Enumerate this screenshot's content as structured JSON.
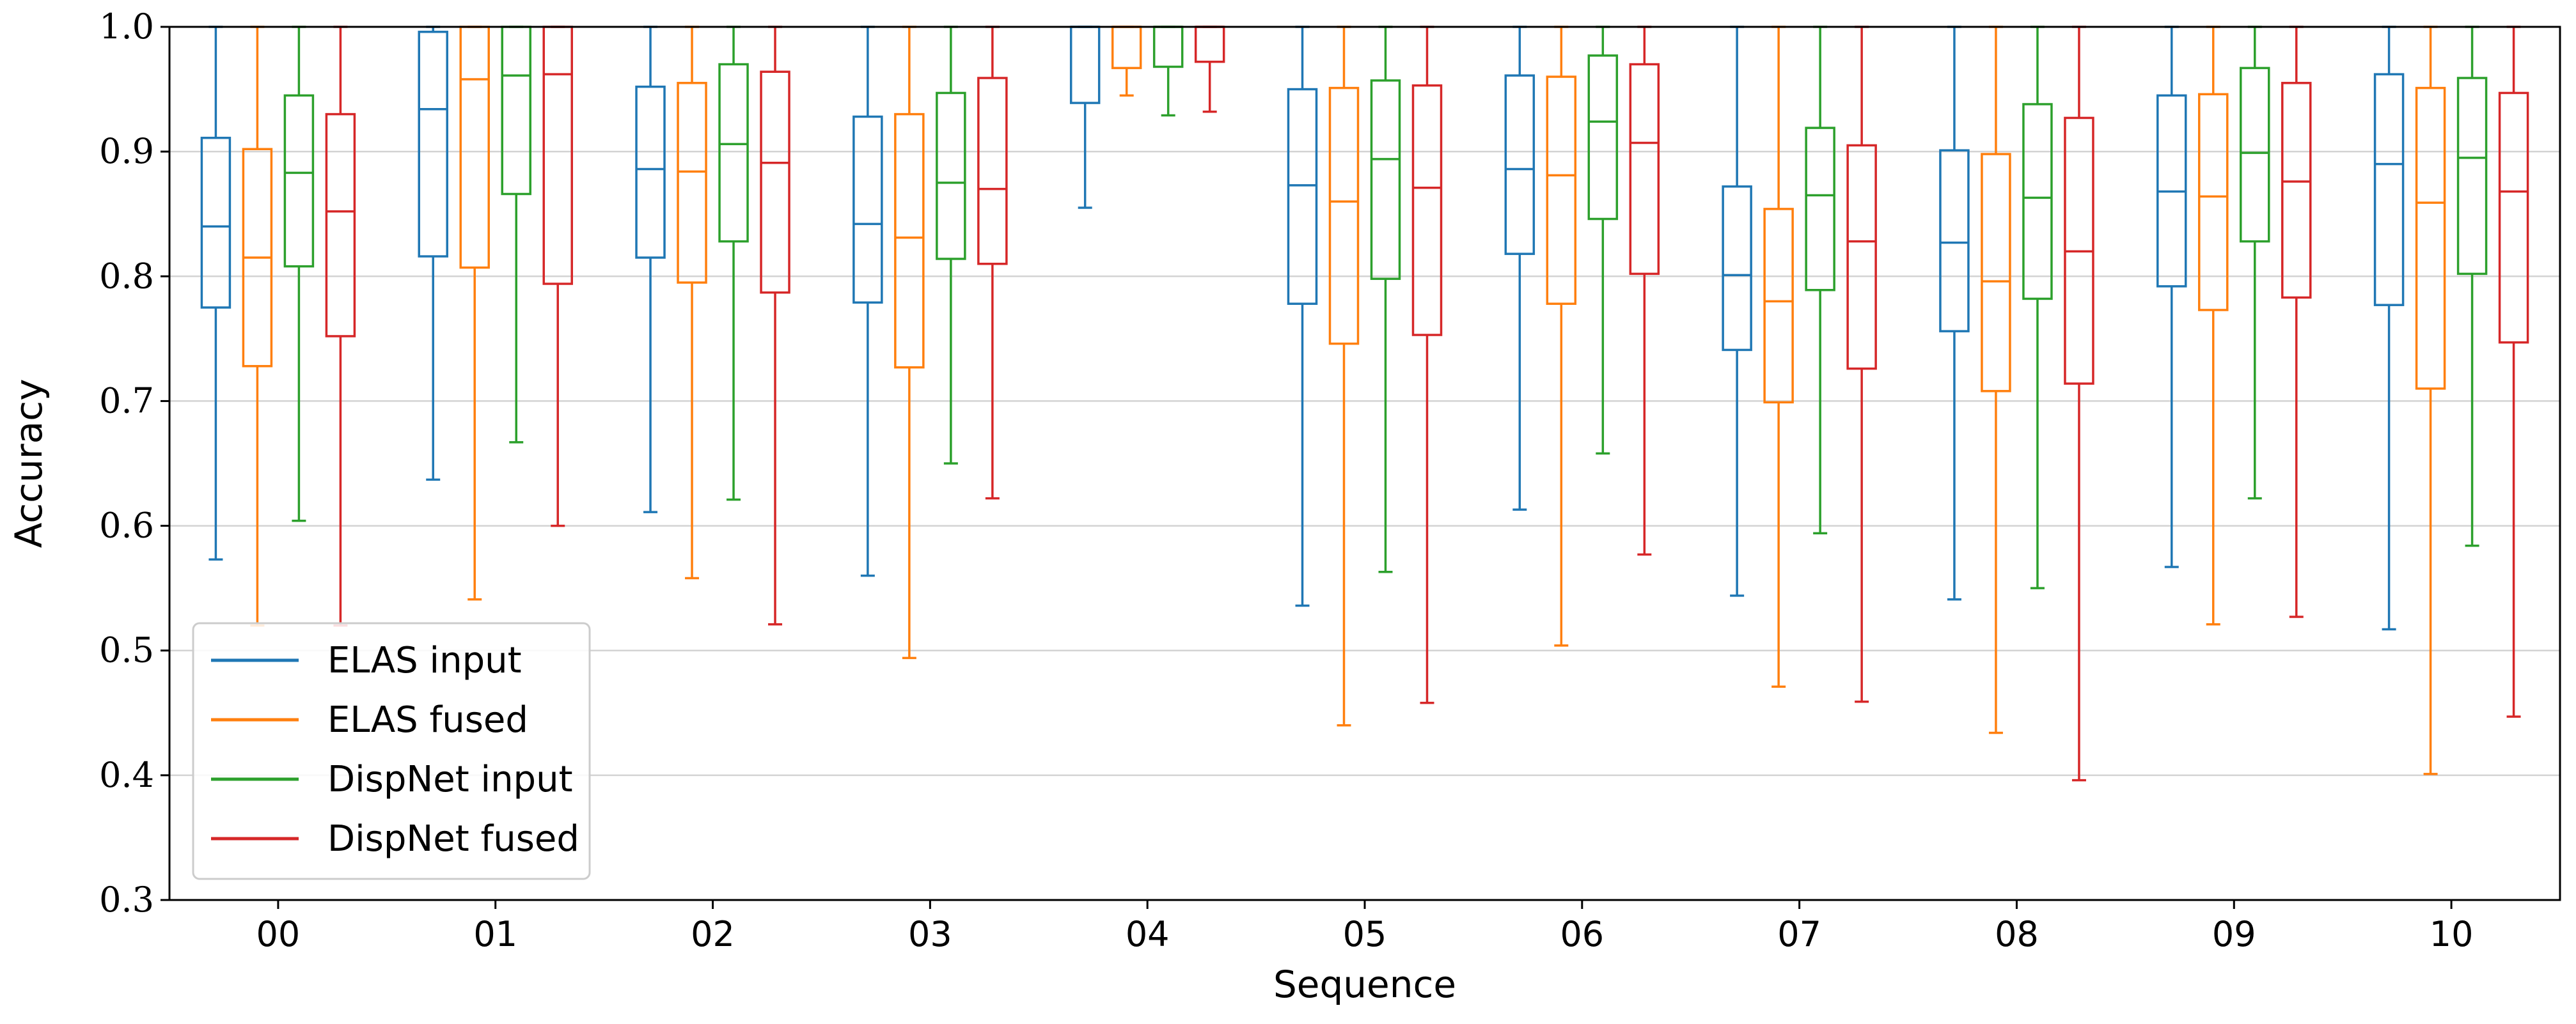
{
  "chart_data": {
    "type": "box",
    "xlabel": "Sequence",
    "ylabel": "Accuracy",
    "ylim": [
      0.3,
      1.0
    ],
    "yticks": [
      "0.3",
      "0.4",
      "0.5",
      "0.6",
      "0.7",
      "0.8",
      "0.9",
      "1.0"
    ],
    "grid": "horizontal",
    "legend_position": "lower-left",
    "categories": [
      "00",
      "01",
      "02",
      "03",
      "04",
      "05",
      "06",
      "07",
      "08",
      "09",
      "10"
    ],
    "series": [
      {
        "name": "ELAS input",
        "color": "#1f77b4",
        "boxes": [
          {
            "low": 0.573,
            "q1": 0.775,
            "median": 0.84,
            "q3": 0.911,
            "high": 1.0
          },
          {
            "low": 0.637,
            "q1": 0.816,
            "median": 0.934,
            "q3": 0.996,
            "high": 1.0
          },
          {
            "low": 0.611,
            "q1": 0.815,
            "median": 0.886,
            "q3": 0.952,
            "high": 1.0
          },
          {
            "low": 0.56,
            "q1": 0.779,
            "median": 0.842,
            "q3": 0.928,
            "high": 1.0
          },
          {
            "low": 0.855,
            "q1": 0.939,
            "median": 1.0,
            "q3": 1.0,
            "high": 1.0
          },
          {
            "low": 0.536,
            "q1": 0.778,
            "median": 0.873,
            "q3": 0.95,
            "high": 1.0
          },
          {
            "low": 0.613,
            "q1": 0.818,
            "median": 0.886,
            "q3": 0.961,
            "high": 1.0
          },
          {
            "low": 0.544,
            "q1": 0.741,
            "median": 0.801,
            "q3": 0.872,
            "high": 1.0
          },
          {
            "low": 0.541,
            "q1": 0.756,
            "median": 0.827,
            "q3": 0.901,
            "high": 1.0
          },
          {
            "low": 0.567,
            "q1": 0.792,
            "median": 0.868,
            "q3": 0.945,
            "high": 1.0
          },
          {
            "low": 0.517,
            "q1": 0.777,
            "median": 0.89,
            "q3": 0.962,
            "high": 1.0
          }
        ]
      },
      {
        "name": "ELAS fused",
        "color": "#ff7f0e",
        "boxes": [
          {
            "low": 0.52,
            "q1": 0.728,
            "median": 0.815,
            "q3": 0.902,
            "high": 1.0
          },
          {
            "low": 0.541,
            "q1": 0.807,
            "median": 0.958,
            "q3": 1.0,
            "high": 1.0
          },
          {
            "low": 0.558,
            "q1": 0.795,
            "median": 0.884,
            "q3": 0.955,
            "high": 1.0
          },
          {
            "low": 0.494,
            "q1": 0.727,
            "median": 0.831,
            "q3": 0.93,
            "high": 1.0
          },
          {
            "low": 0.945,
            "q1": 0.967,
            "median": 1.0,
            "q3": 1.0,
            "high": 1.0
          },
          {
            "low": 0.44,
            "q1": 0.746,
            "median": 0.86,
            "q3": 0.951,
            "high": 1.0
          },
          {
            "low": 0.504,
            "q1": 0.778,
            "median": 0.881,
            "q3": 0.96,
            "high": 1.0
          },
          {
            "low": 0.471,
            "q1": 0.699,
            "median": 0.78,
            "q3": 0.854,
            "high": 1.0
          },
          {
            "low": 0.434,
            "q1": 0.708,
            "median": 0.796,
            "q3": 0.898,
            "high": 1.0
          },
          {
            "low": 0.521,
            "q1": 0.773,
            "median": 0.864,
            "q3": 0.946,
            "high": 1.0
          },
          {
            "low": 0.401,
            "q1": 0.71,
            "median": 0.859,
            "q3": 0.951,
            "high": 1.0
          }
        ]
      },
      {
        "name": "DispNet input",
        "color": "#2ca02c",
        "boxes": [
          {
            "low": 0.604,
            "q1": 0.808,
            "median": 0.883,
            "q3": 0.945,
            "high": 1.0
          },
          {
            "low": 0.667,
            "q1": 0.866,
            "median": 0.961,
            "q3": 1.0,
            "high": 1.0
          },
          {
            "low": 0.621,
            "q1": 0.828,
            "median": 0.906,
            "q3": 0.97,
            "high": 1.0
          },
          {
            "low": 0.65,
            "q1": 0.814,
            "median": 0.875,
            "q3": 0.947,
            "high": 1.0
          },
          {
            "low": 0.929,
            "q1": 0.968,
            "median": 1.0,
            "q3": 1.0,
            "high": 1.0
          },
          {
            "low": 0.563,
            "q1": 0.798,
            "median": 0.894,
            "q3": 0.957,
            "high": 1.0
          },
          {
            "low": 0.658,
            "q1": 0.846,
            "median": 0.924,
            "q3": 0.977,
            "high": 1.0
          },
          {
            "low": 0.594,
            "q1": 0.789,
            "median": 0.865,
            "q3": 0.919,
            "high": 1.0
          },
          {
            "low": 0.55,
            "q1": 0.782,
            "median": 0.863,
            "q3": 0.938,
            "high": 1.0
          },
          {
            "low": 0.622,
            "q1": 0.828,
            "median": 0.899,
            "q3": 0.967,
            "high": 1.0
          },
          {
            "low": 0.584,
            "q1": 0.802,
            "median": 0.895,
            "q3": 0.959,
            "high": 1.0
          }
        ]
      },
      {
        "name": "DispNet fused",
        "color": "#d62728",
        "boxes": [
          {
            "low": 0.52,
            "q1": 0.752,
            "median": 0.852,
            "q3": 0.93,
            "high": 1.0
          },
          {
            "low": 0.6,
            "q1": 0.794,
            "median": 0.962,
            "q3": 1.0,
            "high": 1.0
          },
          {
            "low": 0.521,
            "q1": 0.787,
            "median": 0.891,
            "q3": 0.964,
            "high": 1.0
          },
          {
            "low": 0.622,
            "q1": 0.81,
            "median": 0.87,
            "q3": 0.959,
            "high": 1.0
          },
          {
            "low": 0.932,
            "q1": 0.972,
            "median": 1.0,
            "q3": 1.0,
            "high": 1.0
          },
          {
            "low": 0.458,
            "q1": 0.753,
            "median": 0.871,
            "q3": 0.953,
            "high": 1.0
          },
          {
            "low": 0.577,
            "q1": 0.802,
            "median": 0.907,
            "q3": 0.97,
            "high": 1.0
          },
          {
            "low": 0.459,
            "q1": 0.726,
            "median": 0.828,
            "q3": 0.905,
            "high": 1.0
          },
          {
            "low": 0.396,
            "q1": 0.714,
            "median": 0.82,
            "q3": 0.927,
            "high": 1.0
          },
          {
            "low": 0.527,
            "q1": 0.783,
            "median": 0.876,
            "q3": 0.955,
            "high": 1.0
          },
          {
            "low": 0.447,
            "q1": 0.747,
            "median": 0.868,
            "q3": 0.947,
            "high": 1.0
          }
        ]
      }
    ]
  }
}
